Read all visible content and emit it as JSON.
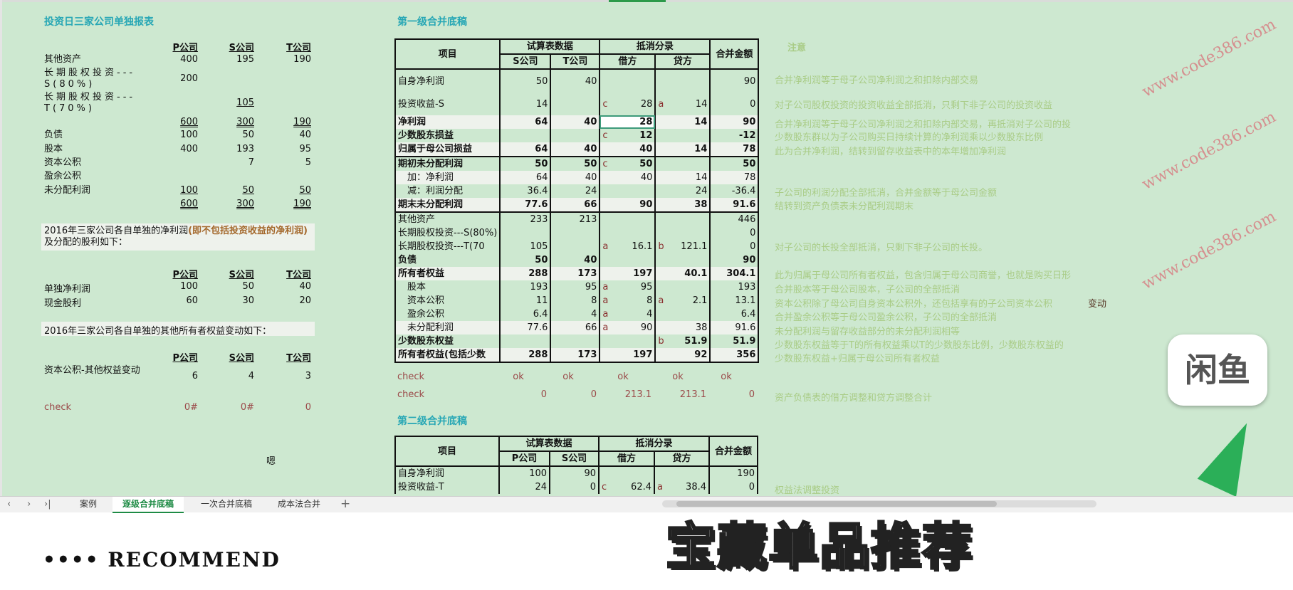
{
  "colors": {
    "background": "#cde8d0",
    "title": "#27a7b5",
    "note": "#a9cc86",
    "check": "#9b4a4a",
    "active_tab": "#1e8b45"
  },
  "left": {
    "title": "投资日三家公司单独报表",
    "headers": [
      "P公司",
      "S公司",
      "T公司"
    ],
    "rows": [
      {
        "label": "其他资产",
        "values": [
          "400",
          "195",
          "190"
        ]
      },
      {
        "label": "长期股权投资---S(80%)",
        "values": [
          "200",
          "",
          ""
        ]
      },
      {
        "label": "长期股权投资---T(70%)",
        "values": [
          "",
          "105",
          ""
        ]
      },
      {
        "label": "",
        "values": [
          "600",
          "300",
          "190"
        ]
      },
      {
        "label": "负债",
        "values": [
          "100",
          "50",
          "40"
        ]
      },
      {
        "label": "股本",
        "values": [
          "400",
          "193",
          "95"
        ]
      },
      {
        "label": "资本公积",
        "values": [
          "",
          "7",
          "5"
        ]
      },
      {
        "label": "盈余公积",
        "values": [
          "",
          "",
          ""
        ]
      },
      {
        "label": "未分配利润",
        "values": [
          "100",
          "50",
          "50"
        ]
      },
      {
        "label": "",
        "values": [
          "600",
          "300",
          "190"
        ]
      }
    ],
    "box1_text": "2016年三家公司各自单独的净利润",
    "box1_highlight": "(即不包括投资收益的净利润)",
    "box1_tail": "及分配的股利如下：",
    "profit_headers": [
      "P公司",
      "S公司",
      "T公司"
    ],
    "profit_rows": [
      {
        "label": "单独净利润",
        "values": [
          "100",
          "50",
          "40"
        ]
      },
      {
        "label": "现金股利",
        "values": [
          "60",
          "30",
          "20"
        ]
      }
    ],
    "box2_text": "2016年三家公司各自单独的其他所有者权益变动如下：",
    "equity_headers": [
      "P公司",
      "S公司",
      "T公司"
    ],
    "equity_row": {
      "label": "资本公积-其他权益变动",
      "values": [
        "6",
        "4",
        "3"
      ]
    },
    "check": {
      "label": "check",
      "values": [
        "0#",
        "0#",
        "0"
      ]
    },
    "stray": "嗯"
  },
  "level1": {
    "title": "第一级合并底稿",
    "headers": {
      "item": "项目",
      "trial": "试算表数据",
      "elim": "抵消分录",
      "total": "合并金额",
      "s": "S公司",
      "t": "T公司",
      "debit": "借方",
      "credit": "贷方"
    },
    "rows": [
      {
        "label": "自身净利润",
        "s": "50",
        "t": "40",
        "dt": "",
        "d": "",
        "ct": "",
        "c": "",
        "total": "90",
        "style": "tall"
      },
      {
        "label": "投资收益-S",
        "s": "14",
        "t": "",
        "dt": "c",
        "d": "28",
        "ct": "a",
        "c": "14",
        "total": "0",
        "style": "tall"
      },
      {
        "label": "净利润",
        "s": "64",
        "t": "40",
        "dt": "",
        "d": "28",
        "ct": "",
        "c": "14",
        "total": "90",
        "style": "b hl"
      },
      {
        "label": "少数股东损益",
        "s": "",
        "t": "",
        "dt": "c",
        "d": "12",
        "ct": "",
        "c": "",
        "total": "-12",
        "style": "b"
      },
      {
        "label": "归属于母公司损益",
        "s": "64",
        "t": "40",
        "dt": "",
        "d": "40",
        "ct": "",
        "c": "14",
        "total": "78",
        "style": "b hl"
      },
      {
        "label": "期初未分配利润",
        "s": "50",
        "t": "50",
        "dt": "c",
        "d": "50",
        "ct": "",
        "c": "",
        "total": "50",
        "style": "b sep"
      },
      {
        "label": "　加：净利润",
        "s": "64",
        "t": "40",
        "dt": "",
        "d": "40",
        "ct": "",
        "c": "14",
        "total": "78",
        "style": "hl"
      },
      {
        "label": "　减：利润分配",
        "s": "36.4",
        "t": "24",
        "dt": "",
        "d": "",
        "ct": "",
        "c": "24",
        "total": "-36.4",
        "style": ""
      },
      {
        "label": "期末未分配利润",
        "s": "77.6",
        "t": "66",
        "dt": "",
        "d": "90",
        "ct": "",
        "c": "38",
        "total": "91.6",
        "style": "b hl"
      },
      {
        "label": "其他资产",
        "s": "233",
        "t": "213",
        "dt": "",
        "d": "",
        "ct": "",
        "c": "",
        "total": "446",
        "style": "sep"
      },
      {
        "label": "长期股权投资---S(80%)",
        "s": "",
        "t": "",
        "dt": "",
        "d": "",
        "ct": "",
        "c": "",
        "total": "0",
        "style": ""
      },
      {
        "label": "长期股权投资---T(70",
        "s": "105",
        "t": "",
        "dt": "a",
        "d": "16.1",
        "ct": "b",
        "c": "121.1",
        "total": "0",
        "style": ""
      },
      {
        "label": "负债",
        "s": "50",
        "t": "40",
        "dt": "",
        "d": "",
        "ct": "",
        "c": "",
        "total": "90",
        "style": "b"
      },
      {
        "label": "所有者权益",
        "s": "288",
        "t": "173",
        "dt": "",
        "d": "197",
        "ct": "",
        "c": "40.1",
        "total": "304.1",
        "style": "b hl"
      },
      {
        "label": "　股本",
        "s": "193",
        "t": "95",
        "dt": "a",
        "d": "95",
        "ct": "",
        "c": "",
        "total": "193",
        "style": ""
      },
      {
        "label": "　资本公积",
        "s": "11",
        "t": "8",
        "dt": "a",
        "d": "8",
        "ct": "a",
        "c": "2.1",
        "total": "13.1",
        "style": ""
      },
      {
        "label": "　盈余公积",
        "s": "6.4",
        "t": "4",
        "dt": "a",
        "d": "4",
        "ct": "",
        "c": "",
        "total": "6.4",
        "style": ""
      },
      {
        "label": "　未分配利润",
        "s": "77.6",
        "t": "66",
        "dt": "a",
        "d": "90",
        "ct": "",
        "c": "38",
        "total": "91.6",
        "style": "hl"
      },
      {
        "label": "少数股东权益",
        "s": "",
        "t": "",
        "dt": "",
        "d": "",
        "ct": "b",
        "c": "51.9",
        "total": "51.9",
        "style": "b"
      },
      {
        "label": "所有者权益(包括少数",
        "s": "288",
        "t": "173",
        "dt": "",
        "d": "197",
        "ct": "",
        "c": "92",
        "total": "356",
        "style": "b hl last"
      }
    ],
    "checks": [
      {
        "label": "check",
        "values": [
          "ok",
          "ok",
          "ok",
          "ok",
          "ok"
        ]
      },
      {
        "label": "check",
        "values": [
          "0",
          "0",
          "213.1",
          "213.1",
          "0"
        ]
      }
    ]
  },
  "level2": {
    "title": "第二级合并底稿",
    "headers": {
      "item": "项目",
      "trial": "试算表数据",
      "elim": "抵消分录",
      "total": "合并金额",
      "s": "P公司",
      "t": "S公司",
      "debit": "借方",
      "credit": "贷方"
    },
    "rows": [
      {
        "label": "自身净利润",
        "s": "100",
        "t": "90",
        "dt": "",
        "d": "",
        "ct": "",
        "c": "",
        "total": "190",
        "style": ""
      },
      {
        "label": "投资收益-T",
        "s": "24",
        "t": "0",
        "dt": "c",
        "d": "62.4",
        "ct": "a",
        "c": "38.4",
        "total": "0",
        "style": ""
      }
    ]
  },
  "notes": {
    "title": "注意",
    "lines": [
      "合并净利润等于母子公司净利润之和扣除内部交易",
      "对子公司股权投资的投资收益全部抵消，只剩下非子公司的投资收益",
      "合并净利润等于母子公司净利润之和扣除内部交易，再抵消对子公司的投",
      "少数股东群以为子公司购买日持续计算的净利润乘以少数股东比例",
      "此为合并净利润，结转到留存收益表中的本年增加净利润",
      "子公司的利润分配全部抵消，合并金额等于母公司金额",
      "结转到资产负债表未分配利润期末",
      "对子公司的长投全部抵消，只剩下非子公司的长投。",
      "此为归属于母公司所有者权益，包含归属于母公司商誉，也就是购买日形",
      "合并股本等于母公司股本，子公司的全部抵消",
      "资本公积除了母公司自身资本公积外，还包括享有的子公司资本公积",
      "合并盈余公积等于母公司盈余公积，子公司的全部抵消",
      "未分配利润与留存收益部分的未分配利润相等",
      "少数股东权益等于T的所有权益乘以T的少数股东比例，少数股东权益的",
      "少数股东权益+归属于母公司所有者权益",
      "资产负债表的借方调整和贷方调整合计",
      "权益法调整投资"
    ],
    "dark_suffix": "变动"
  },
  "tabs": {
    "items": [
      "案例",
      "逐级合并底稿",
      "一次合并底稿",
      "成本法合并"
    ],
    "active": 1,
    "add": "+",
    "nav": [
      "‹",
      "›",
      "›|"
    ]
  },
  "overlay": {
    "watermark": "www.code386.com",
    "logo": "闲鱼",
    "banner": "宝藏单品推荐",
    "banner_sub": "•••• RECOMMEND"
  }
}
